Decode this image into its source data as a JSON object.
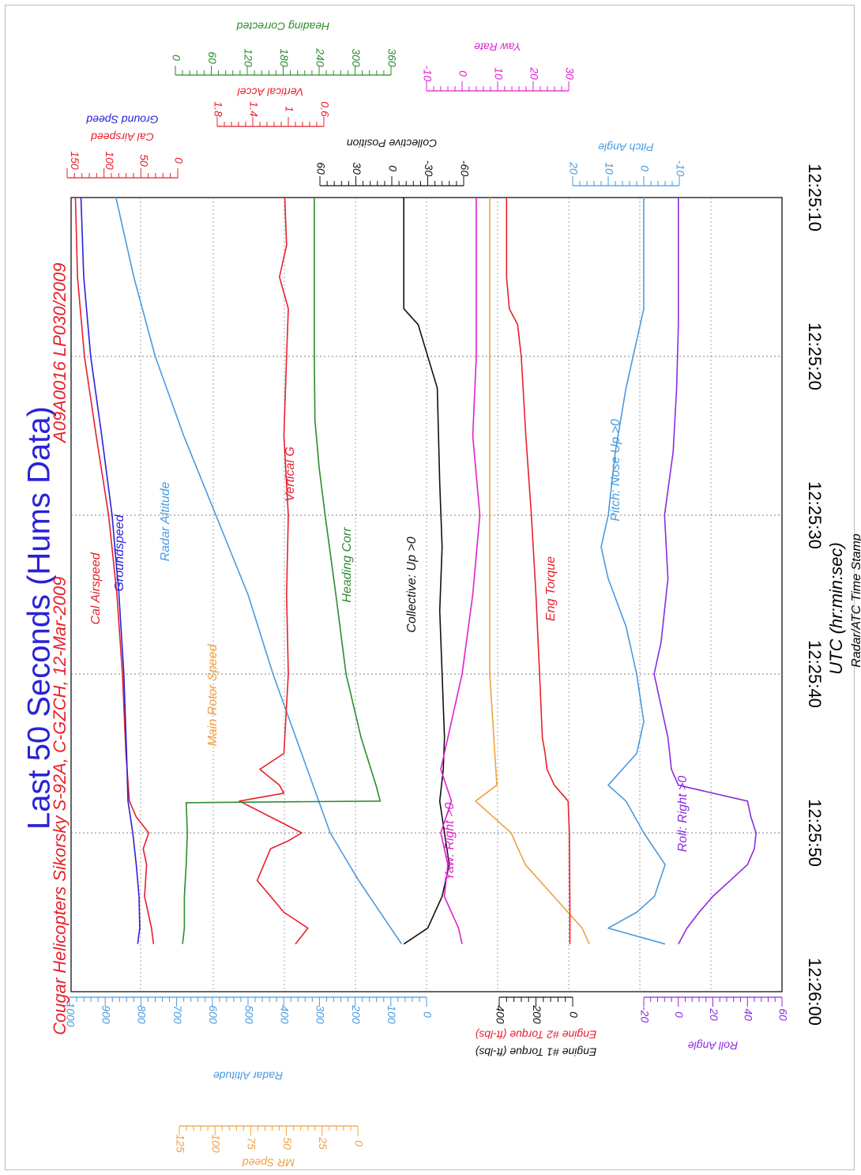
{
  "chart_data": {
    "type": "line",
    "title": "Last 50 Seconds (Hums Data)",
    "subtitle": "Cougar Helicopters Sikorsky S-92A, C-GZCH, 12-Mar-2009",
    "report_id": "A09A0016  LP030/2009",
    "xlabel": "UTC (hr:min:sec)",
    "xlabel2": "Radar/ATC Time Stamp",
    "x_ticks": [
      "12:25:10",
      "12:25:20",
      "12:25:30",
      "12:25:40",
      "12:25:50",
      "12:26:00"
    ],
    "xlim": [
      0,
      50
    ],
    "grid": true,
    "legend": "inline labels",
    "axes": [
      {
        "key": "cal",
        "label": "Cal Airspeed",
        "label2": "Ground Speed",
        "ticks": [
          "150",
          "100",
          "50",
          "0"
        ],
        "min": 0,
        "max": 160,
        "color": "#e8202a",
        "color2": "#2a22d8"
      },
      {
        "key": "vacc",
        "label": "Vertical Accel",
        "ticks": [
          "1.8",
          "1.4",
          "1",
          "0.6"
        ],
        "min": 0.6,
        "max": 1.8,
        "color": "#e8202a"
      },
      {
        "key": "hdg",
        "label": "Heading Corrected",
        "ticks": [
          "0",
          "60",
          "120",
          "180",
          "240",
          "300",
          "360"
        ],
        "min": 0,
        "max": 360,
        "color": "#2e8b2e"
      },
      {
        "key": "col",
        "label": "Collective Position",
        "ticks": [
          "60",
          "30",
          "0",
          "-30",
          "-60"
        ],
        "min": -60,
        "max": 60,
        "color": "#111111"
      },
      {
        "key": "yaw",
        "label": "Yaw Rate",
        "ticks": [
          "-10",
          "0",
          "10",
          "20",
          "30"
        ],
        "min": -10,
        "max": 30,
        "color": "#e020d0"
      },
      {
        "key": "pitch",
        "label": "Pitch Angle",
        "ticks": [
          "20",
          "10",
          "0",
          "-10"
        ],
        "min": -10,
        "max": 20,
        "color": "#4a9ae0"
      },
      {
        "key": "radalt",
        "label": "Radar Altitude",
        "ticks": [
          "1000",
          "900",
          "800",
          "700",
          "600",
          "500",
          "400",
          "300",
          "200",
          "100",
          "0"
        ],
        "min": 0,
        "max": 1000,
        "color": "#4a9ae0"
      },
      {
        "key": "torque",
        "label": "Engine #1 Torque (ft-lbs)",
        "label2": "Engine #2 Torque (ft-lbs)",
        "ticks": [
          "400",
          "200",
          "0"
        ],
        "min": 0,
        "max": 400,
        "color": "#111111",
        "color2": "#e8202a"
      },
      {
        "key": "roll",
        "label": "Roll Angle",
        "ticks": [
          "-20",
          "0",
          "20",
          "40",
          "60"
        ],
        "min": -20,
        "max": 60,
        "color": "#8b2be2"
      },
      {
        "key": "mr",
        "label": "MR Speed",
        "ticks": [
          "125",
          "100",
          "75",
          "50",
          "25",
          "0"
        ],
        "min": 0,
        "max": 125,
        "color": "#f0a040"
      }
    ],
    "series": [
      {
        "name": "Cal Airspeed",
        "color": "#e8202a",
        "x": [
          0,
          5,
          10,
          15,
          20,
          25,
          30,
          35,
          38,
          39,
          40,
          41,
          42,
          44,
          46,
          47
        ],
        "y": [
          148,
          145,
          135,
          118,
          100,
          88,
          80,
          75,
          70,
          60,
          42,
          50,
          45,
          48,
          38,
          35
        ]
      },
      {
        "name": "Groundspeed",
        "color": "#2a22d8",
        "x": [
          0,
          5,
          10,
          15,
          20,
          25,
          30,
          35,
          38,
          40,
          42,
          44,
          46,
          47
        ],
        "y": [
          140,
          136,
          126,
          110,
          95,
          85,
          78,
          74,
          72,
          65,
          60,
          56,
          55,
          58
        ]
      },
      {
        "name": "Radar Altitude",
        "color": "#4a9ae0",
        "x": [
          0,
          5,
          10,
          15,
          20,
          25,
          30,
          35,
          40,
          43,
          46,
          47
        ],
        "y": [
          870,
          820,
          760,
          680,
          590,
          500,
          430,
          350,
          270,
          190,
          100,
          70
        ]
      },
      {
        "name": "Main Rotor Speed",
        "color": "#f0a040",
        "x": [
          0,
          10,
          20,
          30,
          37,
          38,
          40,
          42,
          44,
          46,
          47
        ],
        "y": [
          104,
          104,
          104,
          104,
          103,
          106,
          101,
          99,
          95,
          91,
          90
        ]
      },
      {
        "name": "Vertical G",
        "color": "#e8202a",
        "x": [
          0,
          3,
          5,
          7,
          10,
          15,
          20,
          25,
          30,
          35,
          36,
          37,
          37.5,
          38,
          39,
          40,
          40.5,
          41,
          43,
          45,
          46,
          47
        ],
        "y": [
          1.04,
          1.02,
          1.1,
          1.0,
          1.02,
          1.05,
          1.0,
          1.02,
          1.0,
          1.05,
          1.32,
          1.1,
          1.05,
          1.55,
          1.2,
          0.85,
          1.0,
          1.2,
          1.35,
          1.05,
          0.78,
          0.92
        ]
      },
      {
        "name": "Heading Corr",
        "color": "#2e8b2e",
        "x": [
          0,
          10,
          14,
          17,
          20,
          25,
          30,
          34,
          37,
          38,
          38.1,
          40,
          42,
          44,
          46,
          47
        ],
        "y": [
          232,
          232,
          233,
          240,
          250,
          268,
          285,
          310,
          335,
          342,
          18,
          20,
          18,
          15,
          15,
          12
        ]
      },
      {
        "name": "Collective: Up >0",
        "color": "#111111",
        "x": [
          0,
          7,
          8,
          12,
          18,
          22,
          26,
          30,
          34,
          36,
          38,
          40,
          42,
          44,
          46,
          47
        ],
        "y": [
          -10,
          -10,
          -22,
          -38,
          -40,
          -42,
          -40,
          -42,
          -44,
          -43,
          -40,
          -44,
          -48,
          -42,
          -30,
          -10
        ]
      },
      {
        "name": "Yaw: Right >0",
        "color": "#e020d0",
        "x": [
          0,
          10,
          15,
          20,
          25,
          30,
          34,
          36,
          38,
          40,
          42,
          44,
          46,
          47
        ],
        "y": [
          4,
          4,
          3,
          5,
          3,
          0,
          -4,
          -6,
          -3,
          -6,
          -4,
          -5,
          -1,
          0
        ]
      },
      {
        "name": "Eng Torque",
        "color": "#e8202a",
        "x": [
          0,
          5,
          7,
          8,
          10,
          15,
          20,
          25,
          30,
          34,
          35,
          36,
          37,
          38,
          40,
          45,
          47
        ],
        "y": [
          360,
          360,
          345,
          300,
          280,
          255,
          225,
          200,
          180,
          165,
          150,
          140,
          100,
          25,
          18,
          15,
          15
        ]
      },
      {
        "name": "Pitch: Nose Up >0",
        "color": "#4a9ae0",
        "x": [
          0,
          7,
          9,
          12,
          16,
          20,
          22,
          24,
          27,
          30,
          33,
          35,
          37,
          38,
          40,
          42,
          44,
          45,
          46,
          47
        ],
        "y": [
          0,
          0,
          2,
          5,
          8,
          10,
          12,
          10,
          5,
          2,
          0,
          2,
          10,
          5,
          0,
          -6,
          -3,
          2,
          10,
          -6
        ]
      },
      {
        "name": "Roll: Right >0",
        "color": "#8b2be2",
        "x": [
          0,
          8,
          12,
          16,
          20,
          24,
          28,
          30,
          34,
          36,
          37,
          38,
          39,
          40,
          41,
          42,
          43,
          44,
          45,
          46,
          47
        ],
        "y": [
          0,
          0,
          -1,
          -3,
          -8,
          -6,
          -10,
          -14,
          -6,
          -4,
          0,
          40,
          42,
          45,
          44,
          40,
          30,
          20,
          12,
          5,
          0
        ]
      }
    ],
    "inline_labels": [
      "Cal Airspeed",
      "Groundspeed",
      "Radar Altitude",
      "Main Rotor Speed",
      "Vertical G",
      "Heading Corr",
      "Collective: Up >0",
      "Yaw: Right >0",
      "Eng Torque",
      "Pitch: Nose Up >0",
      "Roll: Right >0"
    ]
  }
}
